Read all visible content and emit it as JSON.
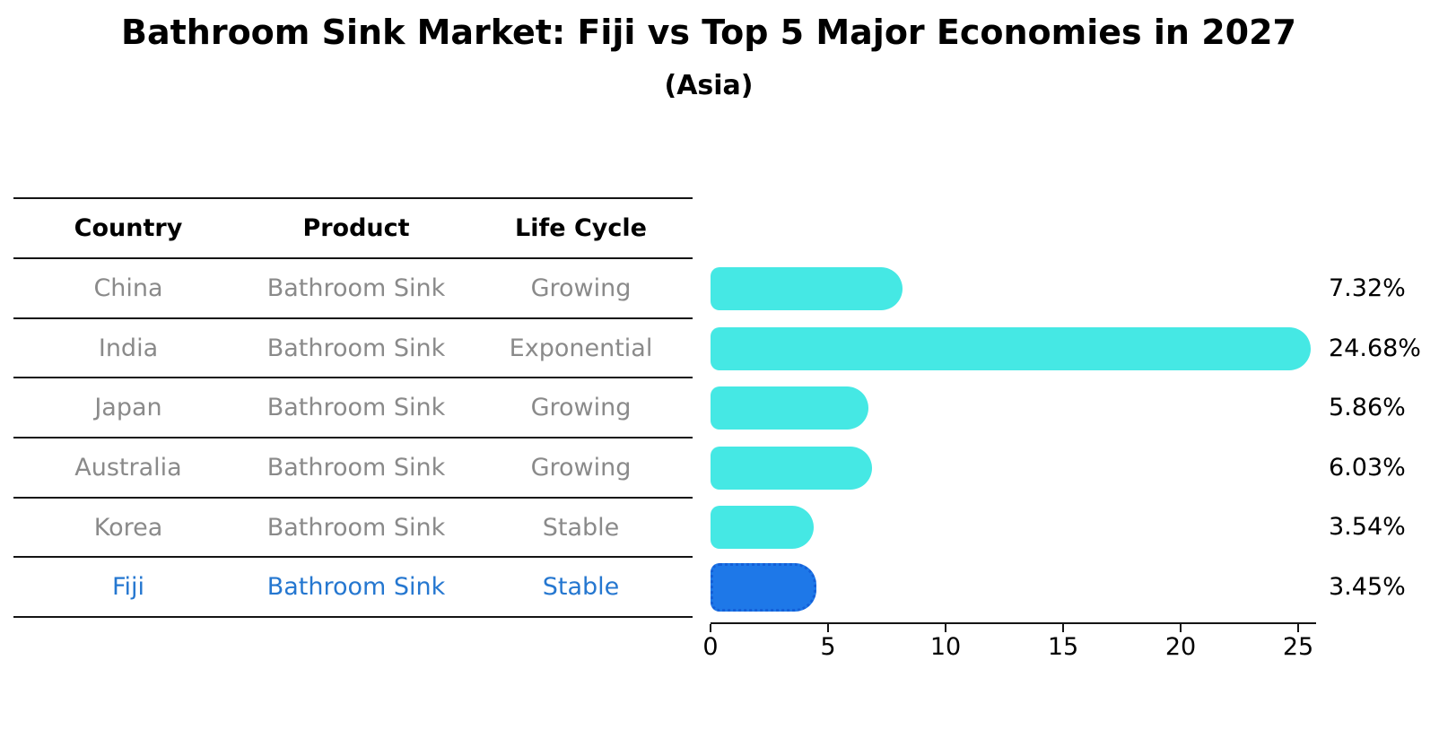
{
  "title": "Bathroom Sink Market: Fiji vs Top 5 Major Economies in 2027",
  "subtitle": "(Asia)",
  "table": {
    "headers": {
      "country": "Country",
      "product": "Product",
      "life_cycle": "Life Cycle"
    },
    "rows": [
      {
        "country": "China",
        "product": "Bathroom Sink",
        "life_cycle": "Growing"
      },
      {
        "country": "India",
        "product": "Bathroom Sink",
        "life_cycle": "Exponential"
      },
      {
        "country": "Japan",
        "product": "Bathroom Sink",
        "life_cycle": "Growing"
      },
      {
        "country": "Australia",
        "product": "Bathroom Sink",
        "life_cycle": "Growing"
      },
      {
        "country": "Korea",
        "product": "Bathroom Sink",
        "life_cycle": "Stable"
      },
      {
        "country": "Fiji",
        "product": "Bathroom Sink",
        "life_cycle": "Stable"
      }
    ],
    "highlight_row": "Fiji"
  },
  "chart_data": {
    "type": "bar",
    "orientation": "horizontal",
    "title": "Bathroom Sink Market: Fiji vs Top 5 Major Economies in 2027",
    "subtitle": "(Asia)",
    "categories": [
      "China",
      "India",
      "Japan",
      "Australia",
      "Korea",
      "Fiji"
    ],
    "values": [
      7.32,
      24.68,
      5.86,
      6.03,
      3.54,
      3.45
    ],
    "value_labels": [
      "7.32%",
      "24.68%",
      "5.86%",
      "6.03%",
      "3.54%",
      "3.45%"
    ],
    "x_ticks": [
      "0",
      "5",
      "10",
      "15",
      "20",
      "25"
    ],
    "x_tick_values": [
      0,
      5,
      10,
      15,
      20,
      25
    ],
    "xlim": [
      0,
      25.8
    ],
    "grid": false,
    "legend": false,
    "bar_color": "#45e8e4",
    "highlight_bar_color": "#1e78e8",
    "highlight_border_color": "#1460d8",
    "highlight_index": 5,
    "highlight_category": "Fiji"
  },
  "colors": {
    "background": "#ffffff",
    "text": "#000000",
    "muted_text": "#8a8a8a",
    "highlight_text": "#2577d0",
    "line": "#141414",
    "bar": "#45e8e4",
    "highlight_bar": "#1e78e8",
    "highlight_bar_border": "#1460d8"
  }
}
